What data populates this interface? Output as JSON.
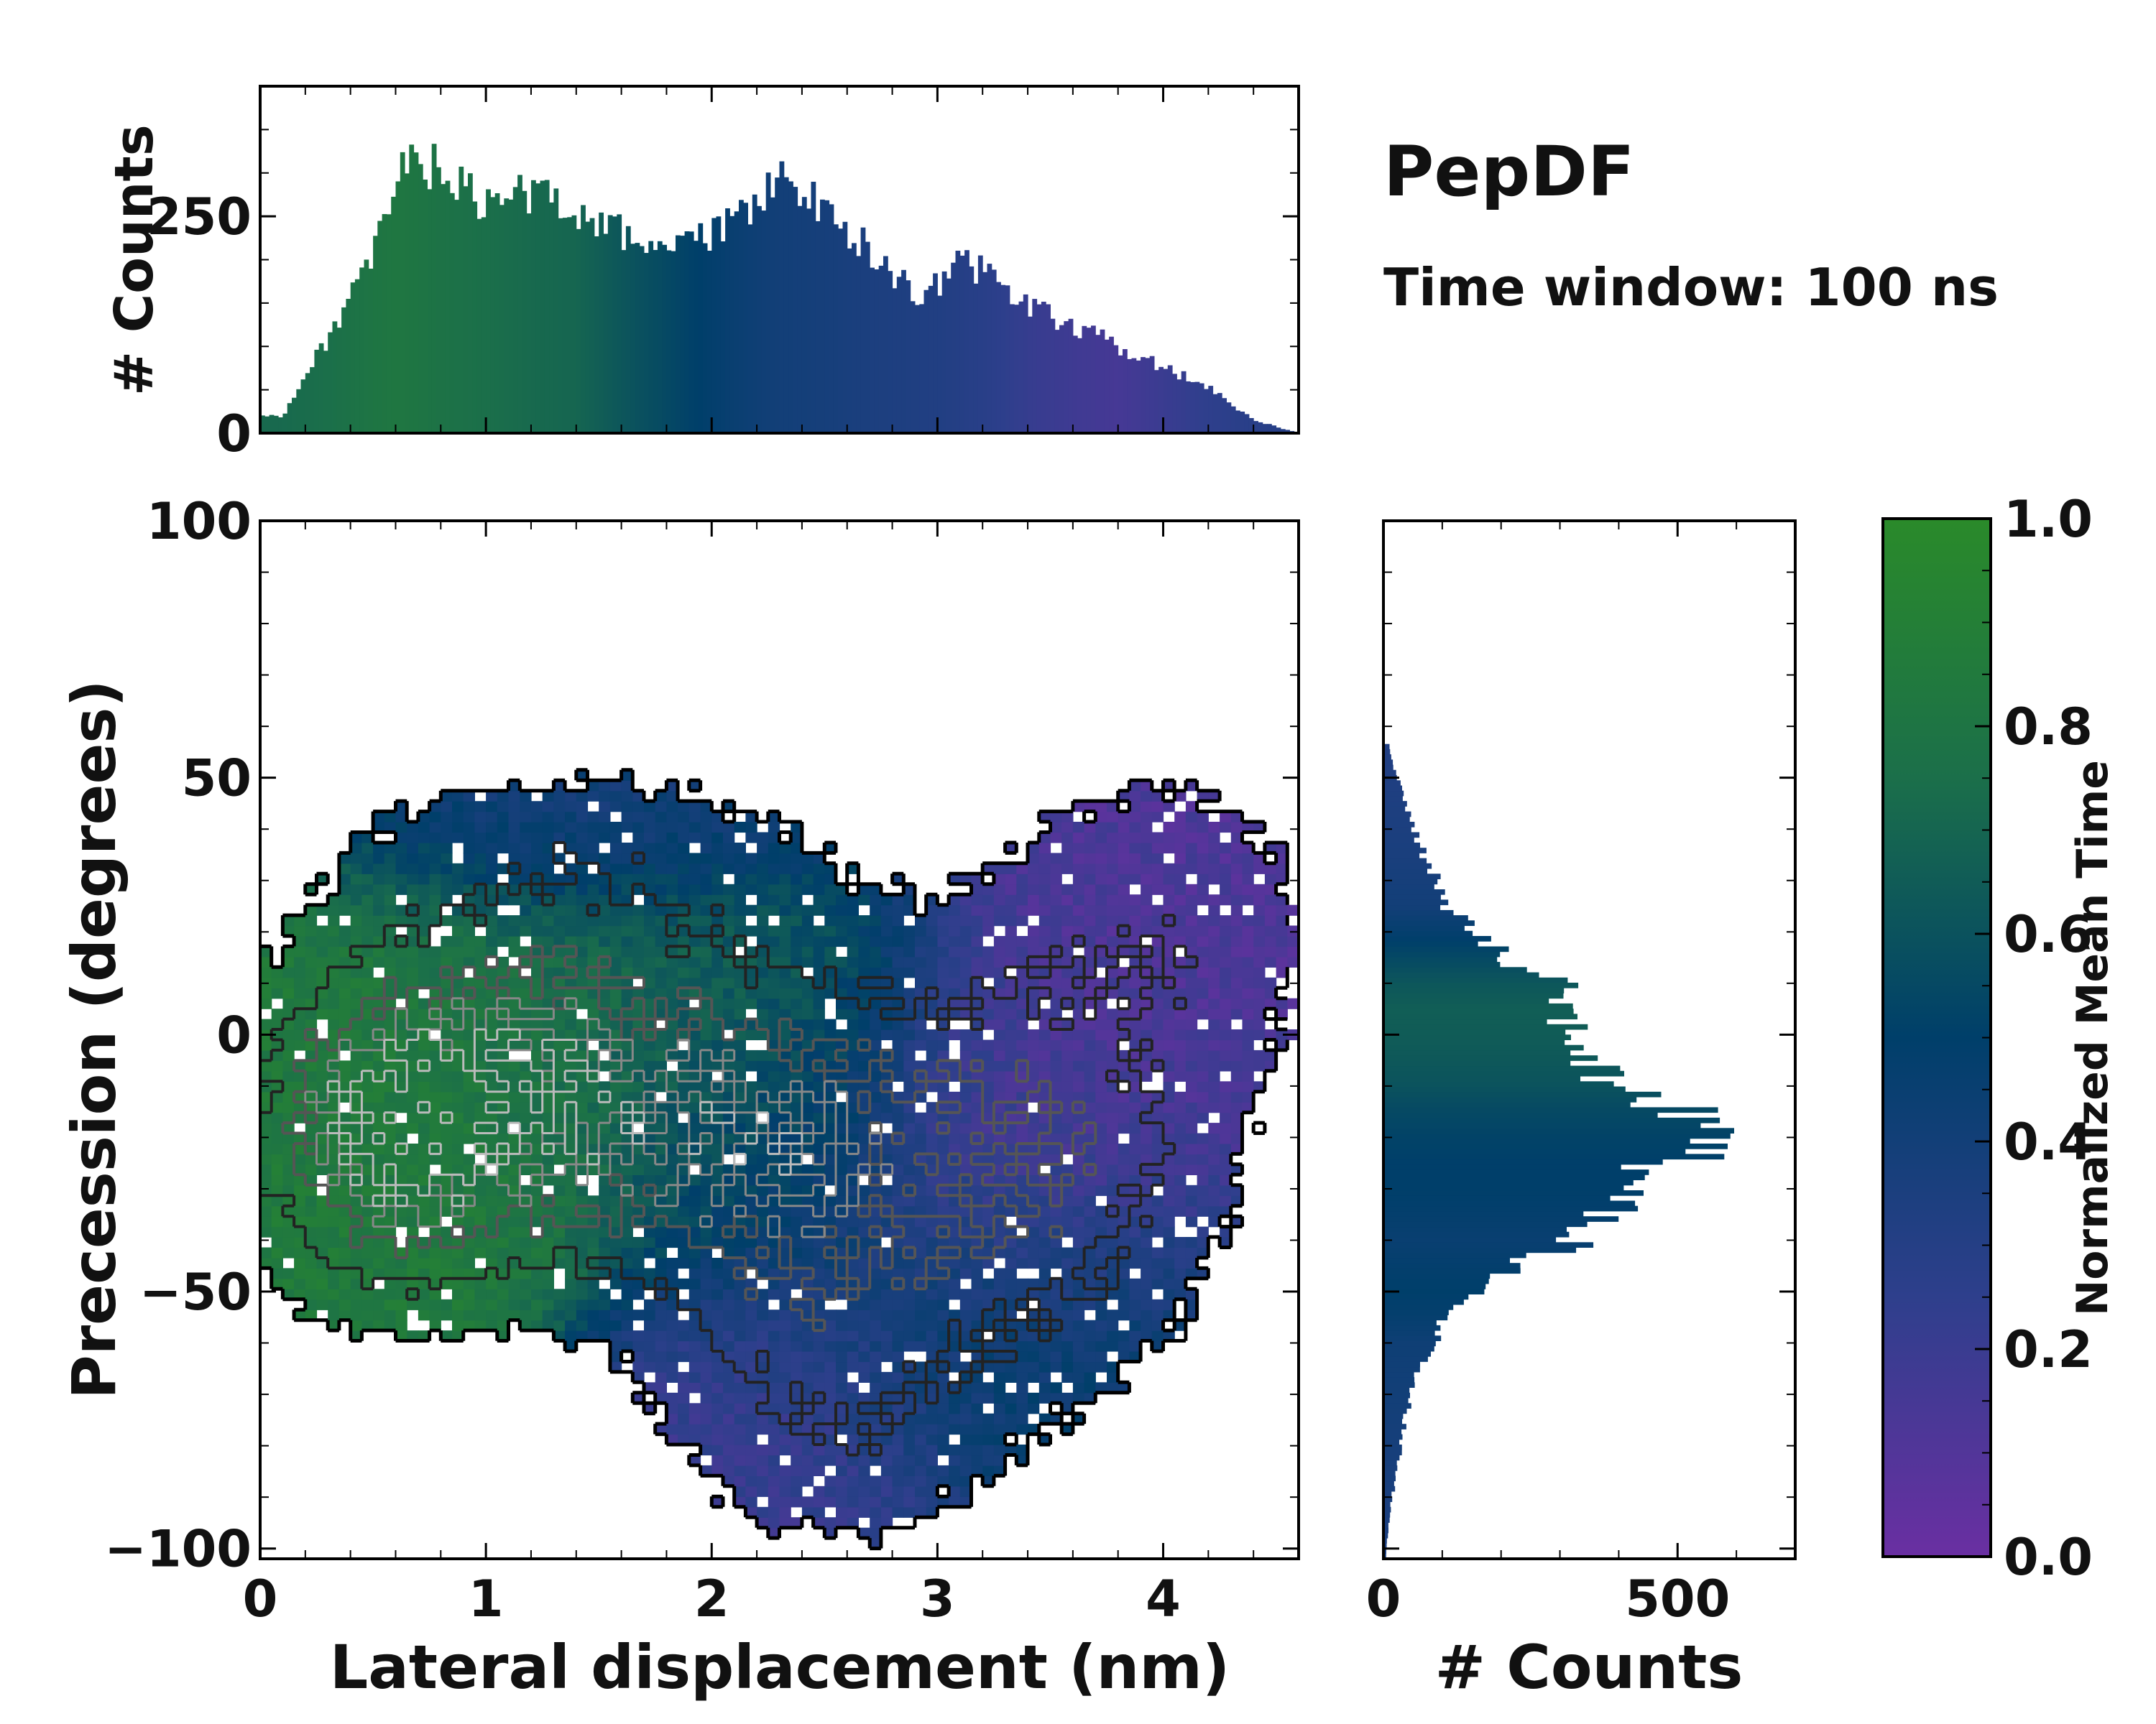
{
  "chart_data": {
    "type": "heatmap",
    "title": "PepDF",
    "subtitle": "Time window: 100 ns",
    "main": {
      "xlabel": "Lateral displacement (nm)",
      "ylabel": "Precession (degrees)",
      "xlim": [
        0,
        4.6
      ],
      "ylim": [
        -102,
        100
      ],
      "xticks": [
        "0",
        "1",
        "2",
        "3",
        "4"
      ],
      "xtick_values": [
        0,
        1,
        2,
        3,
        4
      ],
      "yticks": [
        "100",
        "50",
        "0",
        "−50",
        "−100"
      ],
      "ytick_values": [
        100,
        50,
        0,
        -50,
        -100
      ],
      "density_blobs": [
        {
          "x": 0.55,
          "y": -18,
          "sx": 0.35,
          "sy": 18,
          "w": 1.0
        },
        {
          "x": 1.25,
          "y": -12,
          "sx": 0.45,
          "sy": 20,
          "w": 0.85
        },
        {
          "x": 2.25,
          "y": -22,
          "sx": 0.45,
          "sy": 22,
          "w": 0.75
        },
        {
          "x": 3.35,
          "y": -25,
          "sx": 0.5,
          "sy": 25,
          "w": 0.55
        },
        {
          "x": 2.55,
          "y": -70,
          "sx": 0.45,
          "sy": 18,
          "w": 0.28
        },
        {
          "x": 1.4,
          "y": 30,
          "sx": 0.7,
          "sy": 14,
          "w": 0.22
        },
        {
          "x": 4.0,
          "y": 20,
          "sx": 0.45,
          "sy": 20,
          "w": 0.22
        }
      ],
      "time_regions": [
        {
          "x": 0.8,
          "y": -10,
          "sx": 0.55,
          "sy": 25,
          "t": 0.85
        },
        {
          "x": 1.8,
          "y": 5,
          "sx": 0.6,
          "sy": 20,
          "t": 0.7
        },
        {
          "x": 2.2,
          "y": -20,
          "sx": 0.4,
          "sy": 20,
          "t": 0.5
        },
        {
          "x": 3.4,
          "y": -20,
          "sx": 0.5,
          "sy": 25,
          "t": 0.15
        },
        {
          "x": 3.9,
          "y": 25,
          "sx": 0.4,
          "sy": 20,
          "t": 0.12
        },
        {
          "x": 3.3,
          "y": -60,
          "sx": 0.55,
          "sy": 18,
          "t": 0.5
        },
        {
          "x": 2.3,
          "y": -80,
          "sx": 0.45,
          "sy": 20,
          "t": 0.2
        },
        {
          "x": 1.5,
          "y": 40,
          "sx": 0.6,
          "sy": 12,
          "t": 0.35
        }
      ]
    },
    "top_hist": {
      "ylabel": "# Counts",
      "ylim": [
        0,
        400
      ],
      "yticks": [
        "0",
        "250"
      ],
      "ytick_values": [
        0,
        250
      ],
      "bin_centers_nm": [
        0.1,
        0.3,
        0.5,
        0.6,
        0.7,
        0.8,
        1.0,
        1.2,
        1.4,
        1.6,
        1.8,
        2.0,
        2.2,
        2.3,
        2.5,
        2.7,
        2.9,
        3.0,
        3.1,
        3.2,
        3.4,
        3.6,
        3.8,
        4.0,
        4.2,
        4.4,
        4.6
      ],
      "counts": [
        20,
        110,
        200,
        290,
        320,
        300,
        260,
        280,
        260,
        230,
        215,
        225,
        270,
        290,
        260,
        210,
        160,
        170,
        195,
        190,
        145,
        125,
        100,
        75,
        55,
        15,
        0
      ],
      "bin_times": [
        0.72,
        0.75,
        0.8,
        0.82,
        0.8,
        0.78,
        0.75,
        0.72,
        0.7,
        0.62,
        0.55,
        0.48,
        0.42,
        0.4,
        0.38,
        0.35,
        0.33,
        0.32,
        0.3,
        0.28,
        0.22,
        0.18,
        0.15,
        0.2,
        0.25,
        0.28,
        0.3
      ]
    },
    "right_hist": {
      "xlabel": "# Counts",
      "xlim": [
        0,
        700
      ],
      "xticks": [
        "0",
        "500"
      ],
      "xtick_values": [
        0,
        500
      ],
      "bin_centers_deg": [
        55,
        45,
        35,
        25,
        15,
        10,
        5,
        0,
        -5,
        -10,
        -15,
        -20,
        -25,
        -30,
        -35,
        -40,
        -45,
        -50,
        -55,
        -60,
        -70,
        -80,
        -90,
        -100
      ],
      "counts": [
        10,
        40,
        70,
        110,
        210,
        290,
        320,
        330,
        340,
        380,
        510,
        610,
        470,
        400,
        370,
        330,
        220,
        150,
        110,
        80,
        45,
        30,
        15,
        5
      ],
      "bin_times": [
        0.32,
        0.34,
        0.36,
        0.4,
        0.55,
        0.62,
        0.66,
        0.65,
        0.63,
        0.6,
        0.55,
        0.52,
        0.5,
        0.5,
        0.48,
        0.45,
        0.48,
        0.5,
        0.47,
        0.42,
        0.4,
        0.38,
        0.36,
        0.35
      ]
    },
    "colorbar": {
      "label": "Normalized Mean Time",
      "range": [
        0,
        1
      ],
      "ticks": [
        "0.0",
        "0.2",
        "0.4",
        "0.6",
        "0.8",
        "1.0"
      ],
      "tick_values": [
        0,
        0.2,
        0.4,
        0.6,
        0.8,
        1.0
      ],
      "colors": [
        "#6a2fa2",
        "#2e3f8c",
        "#003f6a",
        "#1b6f4a",
        "#2a8a2a"
      ]
    }
  }
}
